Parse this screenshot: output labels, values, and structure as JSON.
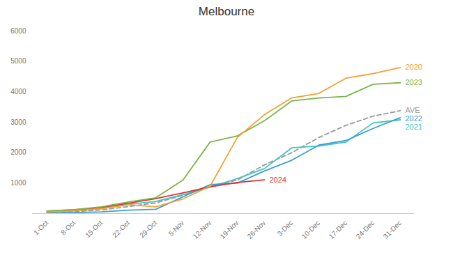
{
  "chart_data": {
    "type": "line",
    "title": "Melbourne",
    "categories": [
      "1-Oct",
      "8-Oct",
      "15-Oct",
      "22-Oct",
      "29-Oct",
      "5-Nov",
      "12-Nov",
      "19-Nov",
      "26-Nov",
      "3-Dec",
      "10-Dec",
      "17-Dec",
      "24-Dec",
      "31-Dec"
    ],
    "series": [
      {
        "name": "AVE",
        "color": "#999999",
        "line_style": "dashed",
        "values": [
          30,
          65,
          120,
          230,
          350,
          600,
          900,
          1100,
          1600,
          2000,
          2500,
          2900,
          3200,
          3380
        ]
      },
      {
        "name": "2021",
        "color": "#40c4c4",
        "line_style": "solid",
        "values": [
          60,
          100,
          180,
          300,
          400,
          620,
          870,
          1150,
          1480,
          2160,
          2220,
          2350,
          2980,
          3080
        ]
      },
      {
        "name": "2022",
        "color": "#3b9fd4",
        "line_style": "solid",
        "values": [
          20,
          30,
          55,
          110,
          140,
          550,
          950,
          1000,
          1400,
          1750,
          2250,
          2400,
          2800,
          3150
        ]
      },
      {
        "name": "2024",
        "color": "#e03030",
        "line_style": "solid",
        "values": [
          80,
          120,
          200,
          340,
          490,
          680,
          880,
          1020,
          1110,
          null,
          null,
          null,
          null,
          null
        ]
      },
      {
        "name": "2023",
        "color": "#7ab648",
        "line_style": "solid",
        "values": [
          80,
          130,
          220,
          380,
          520,
          1100,
          2350,
          2550,
          3050,
          3700,
          3800,
          3850,
          4250,
          4300
        ]
      },
      {
        "name": "2020",
        "color": "#f4a030",
        "line_style": "solid",
        "values": [
          50,
          90,
          160,
          290,
          220,
          480,
          900,
          2500,
          3250,
          3800,
          3950,
          4450,
          4600,
          4800
        ]
      }
    ],
    "ylim": [
      0,
      6000
    ],
    "yticks": [
      1000,
      2000,
      3000,
      4000,
      5000,
      6000
    ],
    "grid": false
  }
}
